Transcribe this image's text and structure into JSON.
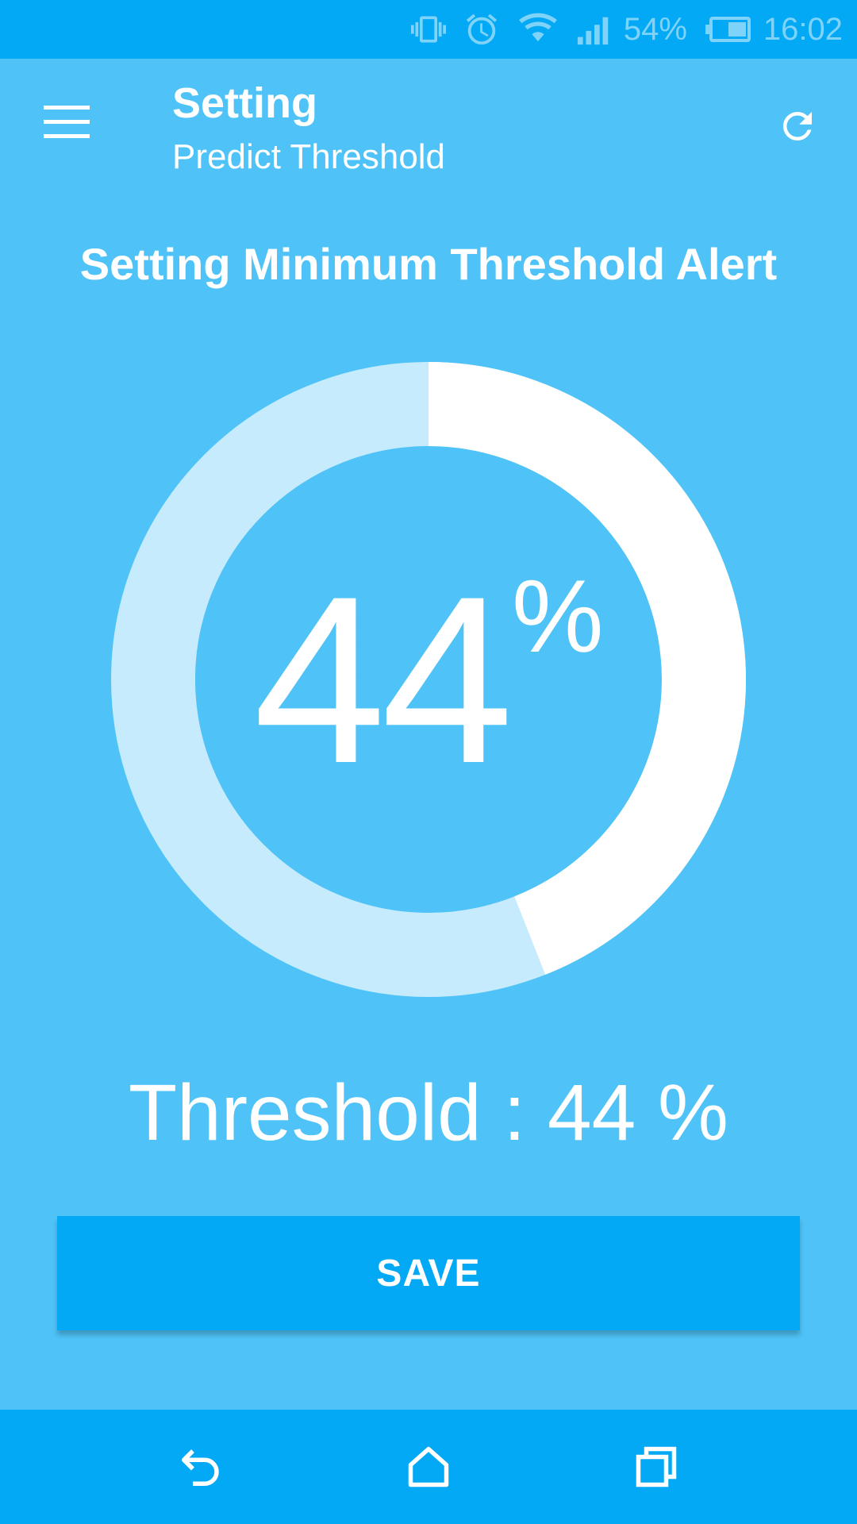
{
  "status_bar": {
    "battery_percent": "54%",
    "time": "16:02",
    "icons": [
      "vibrate-icon",
      "alarm-icon",
      "wifi-icon",
      "signal-icon",
      "battery-icon"
    ]
  },
  "app_bar": {
    "title": "Setting",
    "subtitle": "Predict Threshold",
    "menu_icon": "hamburger-menu-icon",
    "refresh_icon": "refresh-icon"
  },
  "heading": "Setting Minimum Threshold Alert",
  "gauge": {
    "value": 44,
    "value_text": "44",
    "unit": "%",
    "max": 100
  },
  "threshold": {
    "label": "Threshold : 44 %"
  },
  "save_button": {
    "label": "SAVE"
  },
  "nav_bar": {
    "icons": [
      "back-icon",
      "home-icon",
      "recents-icon"
    ]
  },
  "colors": {
    "background": "#4FC3F7",
    "accent": "#03A9F4",
    "gauge_track": "#C6EBFC",
    "gauge_fill": "#FFFFFF",
    "text": "#FFFFFF"
  }
}
